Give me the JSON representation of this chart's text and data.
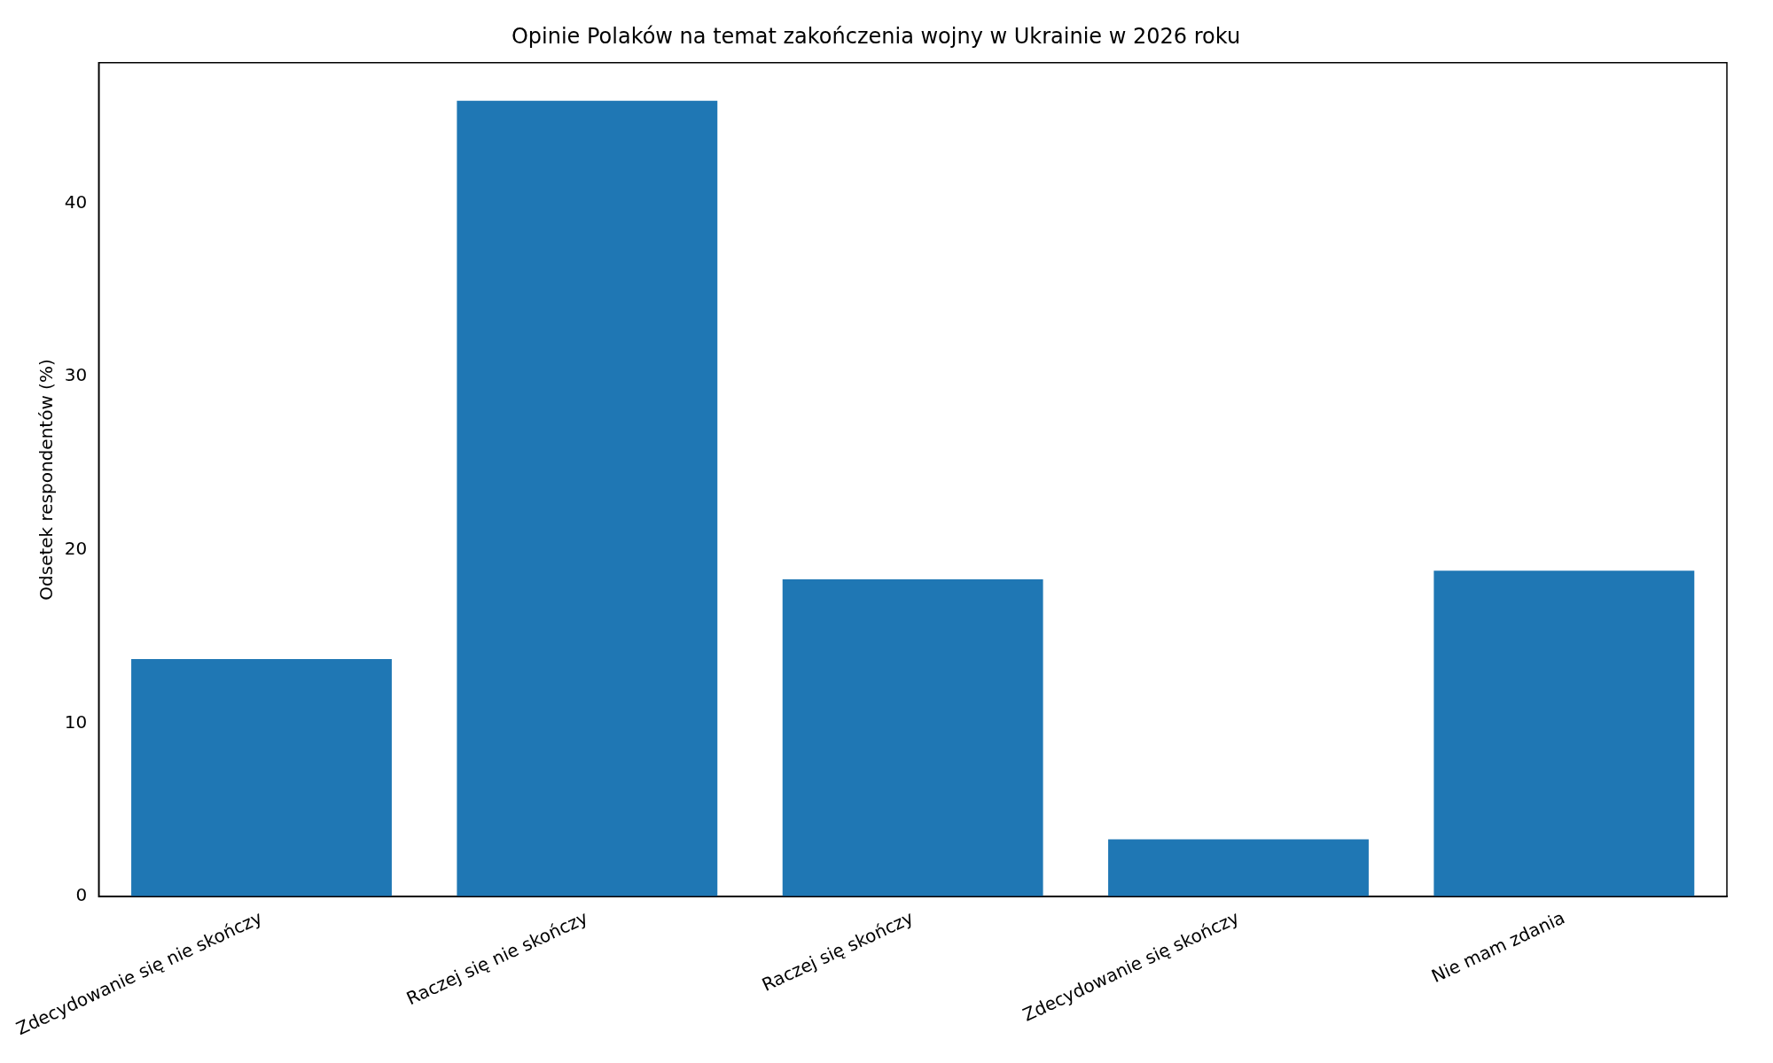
{
  "chart_data": {
    "type": "bar",
    "title": "Opinie Polaków na temat zakończenia wojny w Ukrainie w 2026 roku",
    "ylabel": "Odsetek respondentów (%)",
    "categories": [
      "Zdecydowanie się nie skończy",
      "Raczej się nie skończy",
      "Raczej się skończy",
      "Zdecydowanie się skończy",
      "Nie mam zdania"
    ],
    "values": [
      13.7,
      45.9,
      18.3,
      3.3,
      18.8
    ],
    "color": "#1f77b4",
    "ylim": [
      0,
      48.1
    ],
    "yticks": [
      0,
      10,
      20,
      30,
      40
    ],
    "grid": false,
    "legend": false
  }
}
